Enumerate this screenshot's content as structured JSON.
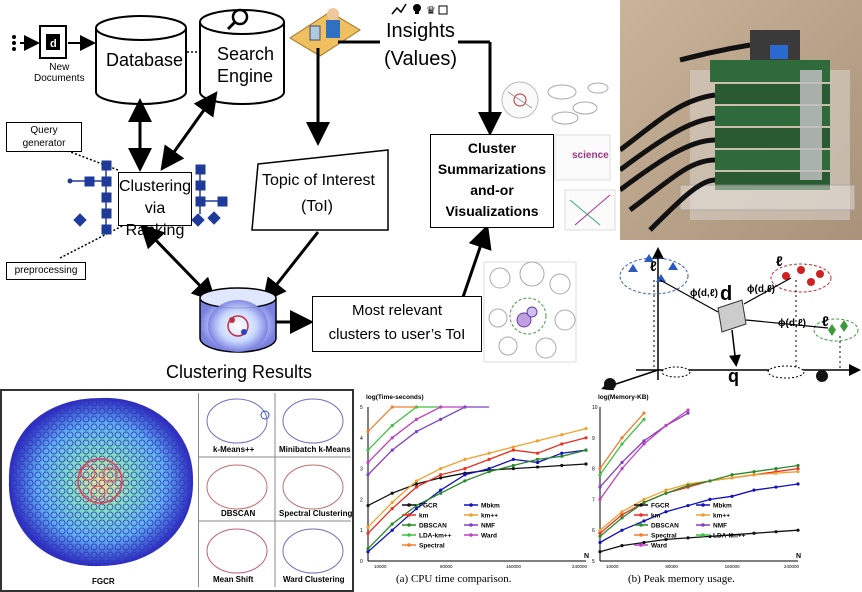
{
  "flow": {
    "new_documents": "New\nDocuments",
    "database": "Database",
    "search_engine_1": "Search",
    "search_engine_2": "Engine",
    "insights_1": "Insights",
    "insights_2": "(Values)",
    "query_generator_1": "Query",
    "query_generator_2": "generator",
    "preprocessing": "preprocessing",
    "clustering_1": "Clustering",
    "clustering_2": "via Ranking",
    "topic_1": "Topic of Interest",
    "topic_2": "(ToI)",
    "cluster_sum_1": "Cluster",
    "cluster_sum_2": "Summarizations",
    "cluster_sum_3": "and-or",
    "cluster_sum_4": "Visualizations",
    "most_relevant_1": "Most relevant",
    "most_relevant_2": "clusters to user’s ToI",
    "clustering_results": "Clustering Results",
    "wordcloud_science": "science"
  },
  "vector_space": {
    "d": "d",
    "q": "q",
    "phi1": "ϕ(d,ℓ)",
    "phi2": "ϕ(d,ℓ)",
    "phi3": "ϕ(d,ℓ)",
    "l1": "ℓ",
    "l2": "ℓ",
    "l3": "ℓ"
  },
  "comparison": {
    "fgcr": "FGCR",
    "kmeanspp": "k-Means++",
    "minibatch": "Minibatch k-Means",
    "dbscan": "DBSCAN",
    "spectral": "Spectral Clustering",
    "meanshift": "Mean Shift",
    "ward": "Ward Clustering"
  },
  "chart_data": [
    {
      "type": "line",
      "title": "",
      "ylabel": "log(Time-seconds)",
      "xlabel": "N",
      "caption": "(a) CPU time comparison.",
      "x_ticks": [
        "10000",
        "80000",
        "160000",
        "240000"
      ],
      "y_ticks": [
        "0",
        "1",
        "2",
        "3",
        "4",
        "5"
      ],
      "ylim": [
        0,
        5
      ],
      "legend": [
        "FGCR",
        "Mbkm",
        "km",
        "km++",
        "DBSCAN",
        "NMF",
        "LDA-km++",
        "Ward",
        "Spectral"
      ],
      "colors": {
        "FGCR": "#111111",
        "Mbkm": "#1010c0",
        "km": "#e83020",
        "km++": "#f0a030",
        "DBSCAN": "#2a8a2a",
        "NMF": "#8040c0",
        "LDA-km++": "#40c040",
        "Ward": "#c040c0",
        "Spectral": "#f08030"
      },
      "series": [
        {
          "name": "FGCR",
          "values": [
            1.8,
            2.2,
            2.5,
            2.7,
            2.85,
            2.95,
            3.0,
            3.05,
            3.1,
            3.15
          ]
        },
        {
          "name": "Mbkm",
          "values": [
            0.3,
            1.0,
            1.7,
            2.3,
            2.8,
            3.0,
            3.3,
            3.2,
            3.5,
            3.6
          ]
        },
        {
          "name": "km",
          "values": [
            0.9,
            1.7,
            2.4,
            2.8,
            3.0,
            3.3,
            3.6,
            3.5,
            3.8,
            4.0
          ]
        },
        {
          "name": "km++",
          "values": [
            1.1,
            1.9,
            2.6,
            3.0,
            3.3,
            3.5,
            3.7,
            3.9,
            4.1,
            4.3
          ]
        },
        {
          "name": "DBSCAN",
          "values": [
            0.4,
            1.2,
            1.8,
            2.2,
            2.6,
            2.9,
            3.1,
            3.3,
            3.4,
            3.6
          ]
        },
        {
          "name": "NMF",
          "values": [
            2.8,
            3.6,
            4.2,
            4.6,
            5.0,
            5.3
          ]
        },
        {
          "name": "LDA-km++",
          "values": [
            3.6,
            4.4,
            5.0,
            5.4
          ]
        },
        {
          "name": "Ward",
          "values": [
            3.2,
            4.0,
            4.6,
            5.0,
            5.3
          ]
        },
        {
          "name": "Spectral",
          "values": [
            4.2,
            5.0,
            5.4
          ]
        }
      ]
    },
    {
      "type": "line",
      "title": "",
      "ylabel": "log(Memory-KB)",
      "xlabel": "N",
      "caption": "(b) Peak memory usage.",
      "x_ticks": [
        "10000",
        "80000",
        "160000",
        "240000"
      ],
      "y_ticks": [
        "5",
        "6",
        "7",
        "8",
        "9",
        "10"
      ],
      "ylim": [
        5,
        10
      ],
      "legend": [
        "FGCR",
        "Mbkm",
        "km",
        "km++",
        "DBSCAN",
        "NMF",
        "Spectral",
        "LDA-km++",
        "Ward"
      ],
      "colors": {
        "FGCR": "#111111",
        "Mbkm": "#1010c0",
        "km": "#e83020",
        "km++": "#f0a030",
        "DBSCAN": "#2a8a2a",
        "NMF": "#8040c0",
        "Spectral": "#f08030",
        "LDA-km++": "#40c040",
        "Ward": "#c040c0"
      },
      "series": [
        {
          "name": "FGCR",
          "values": [
            5.3,
            5.5,
            5.6,
            5.7,
            5.75,
            5.8,
            5.85,
            5.9,
            5.95,
            6.0
          ]
        },
        {
          "name": "Mbkm",
          "values": [
            5.6,
            6.0,
            6.3,
            6.6,
            6.8,
            7.0,
            7.1,
            7.3,
            7.4,
            7.5
          ]
        },
        {
          "name": "km",
          "values": [
            5.9,
            6.5,
            6.9,
            7.2,
            7.4,
            7.6,
            7.7,
            7.8,
            7.9,
            8.0
          ]
        },
        {
          "name": "km++",
          "values": [
            6.0,
            6.6,
            7.0,
            7.3,
            7.5,
            7.6,
            7.7,
            7.8,
            7.85,
            7.9
          ]
        },
        {
          "name": "DBSCAN",
          "values": [
            5.8,
            6.4,
            6.9,
            7.2,
            7.45,
            7.6,
            7.8,
            7.9,
            8.0,
            8.1
          ]
        },
        {
          "name": "NMF",
          "values": [
            7.4,
            8.2,
            8.9,
            9.4,
            9.8
          ]
        },
        {
          "name": "Spectral",
          "values": [
            8.0,
            9.0,
            9.8
          ]
        },
        {
          "name": "LDA-km++",
          "values": [
            7.8,
            8.8,
            9.6
          ]
        },
        {
          "name": "Ward",
          "values": [
            7.0,
            8.0,
            8.8,
            9.4,
            9.9
          ]
        }
      ]
    }
  ]
}
